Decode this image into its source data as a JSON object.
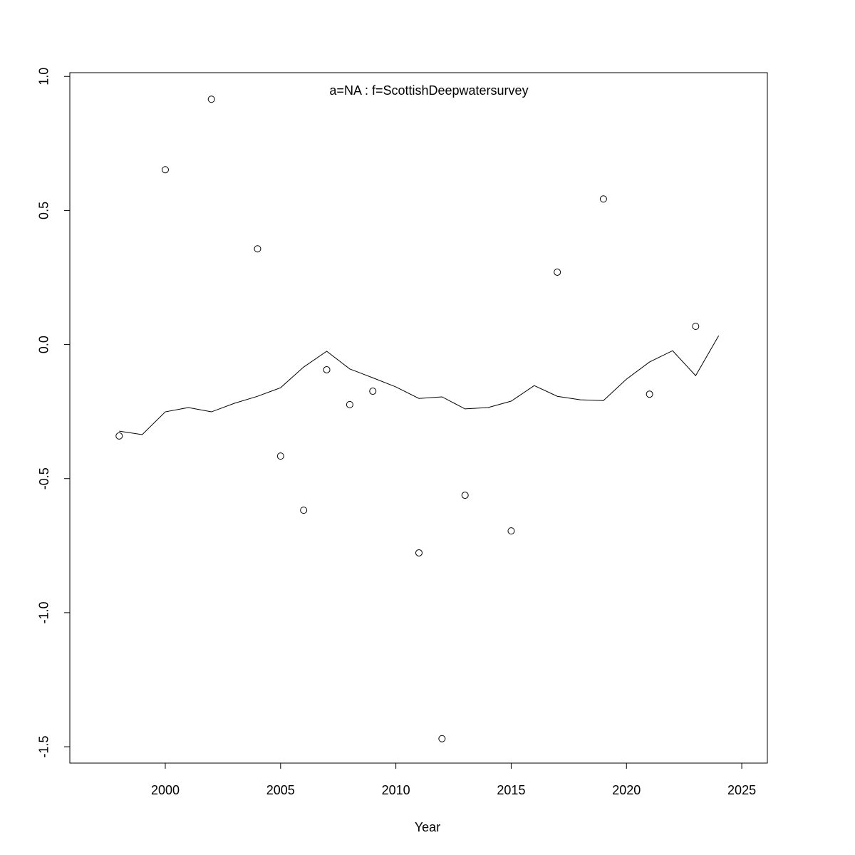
{
  "chart_data": {
    "type": "scatter",
    "annotation": "a=NA  :  f=ScottishDeepwatersurvey",
    "x_label": "Year",
    "x": [
      1998,
      1999,
      2000,
      2001,
      2002,
      2003,
      2004,
      2005,
      2006,
      2007,
      2008,
      2009,
      2010,
      2011,
      2012,
      2013,
      2014,
      2015,
      2016,
      2017,
      2018,
      2019,
      2020,
      2021,
      2022,
      2023,
      2024
    ],
    "series": [
      {
        "style": "points",
        "color": "#000000",
        "values": [
          -0.341,
          null,
          0.652,
          null,
          0.915,
          null,
          0.357,
          -0.416,
          -0.618,
          -0.094,
          -0.224,
          -0.174,
          null,
          -0.777,
          -1.47,
          -0.562,
          null,
          -0.695,
          null,
          0.27,
          null,
          0.543,
          null,
          -0.185,
          null,
          0.068,
          null
        ]
      },
      {
        "style": "line",
        "color": "#000000",
        "values": [
          -0.323,
          -0.336,
          -0.251,
          -0.235,
          -0.251,
          -0.219,
          -0.193,
          -0.161,
          -0.084,
          -0.025,
          -0.091,
          -0.124,
          -0.158,
          -0.201,
          -0.195,
          -0.24,
          -0.235,
          -0.211,
          -0.153,
          -0.193,
          -0.206,
          -0.209,
          -0.129,
          -0.065,
          -0.023,
          -0.116,
          0.033
        ]
      }
    ],
    "xlim": [
      1995.86,
      2026.11
    ],
    "ylim": [
      -1.561,
      1.014
    ],
    "xticks": [
      2000,
      2005,
      2010,
      2015,
      2020,
      2025
    ],
    "yticks": [
      -1.5,
      {
        "value": -1,
        "label": "-1.0"
      },
      -0.5,
      {
        "value": 0,
        "label": "0.0"
      },
      0.5,
      {
        "value": 1,
        "label": "1.0"
      }
    ],
    "annotation_color": "#808080"
  }
}
